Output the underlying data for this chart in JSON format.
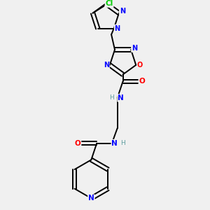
{
  "background_color": "#f0f0f0",
  "bond_color": "#000000",
  "atom_colors": {
    "N": "#0000ff",
    "O": "#ff0000",
    "Cl": "#00cc00",
    "H": "#5f9ea0",
    "C": "#000000"
  },
  "bg_rgb": [
    0.941,
    0.941,
    0.941
  ]
}
